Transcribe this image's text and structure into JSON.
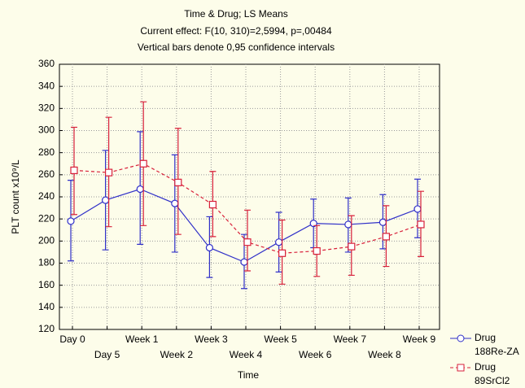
{
  "chart_data": {
    "type": "line",
    "title": "Time & Drug; LS Means",
    "subtitle": "Current effect: F(10, 310)=2,5994, p=,00484",
    "note": "Vertical bars denote 0,95 confidence intervals",
    "x_label": "Time",
    "y_label": "PLT count x10⁹/L",
    "categories": [
      "Day 0",
      "Day 5",
      "Week 1",
      "Week 2",
      "Week 3",
      "Week 4",
      "Week 5",
      "Week 6",
      "Week 7",
      "Week 8",
      "Week 9"
    ],
    "series": [
      {
        "group": "Drug",
        "name": "188Re-ZA",
        "color": "#3030c8",
        "marker": "circle",
        "dash": false,
        "values": [
          218,
          237,
          247,
          234,
          194,
          181,
          199,
          216,
          215,
          217,
          229
        ],
        "ci_low": [
          182,
          192,
          197,
          190,
          167,
          157,
          172,
          194,
          190,
          193,
          203
        ],
        "ci_high": [
          255,
          282,
          299,
          278,
          222,
          206,
          226,
          238,
          239,
          242,
          256
        ]
      },
      {
        "group": "Drug",
        "name": "89SrCl2",
        "color": "#d8203a",
        "marker": "square",
        "dash": true,
        "values": [
          264,
          262,
          270,
          253,
          233,
          199,
          189,
          191,
          195,
          204,
          215
        ],
        "ci_low": [
          224,
          213,
          214,
          206,
          204,
          173,
          161,
          168,
          169,
          177,
          186
        ],
        "ci_high": [
          303,
          312,
          326,
          302,
          263,
          228,
          219,
          214,
          223,
          232,
          245
        ]
      }
    ],
    "ylim": [
      120,
      360
    ],
    "yticks": [
      120,
      140,
      160,
      180,
      200,
      220,
      240,
      260,
      280,
      300,
      320,
      340,
      360
    ],
    "grid": true,
    "legend": "right"
  }
}
